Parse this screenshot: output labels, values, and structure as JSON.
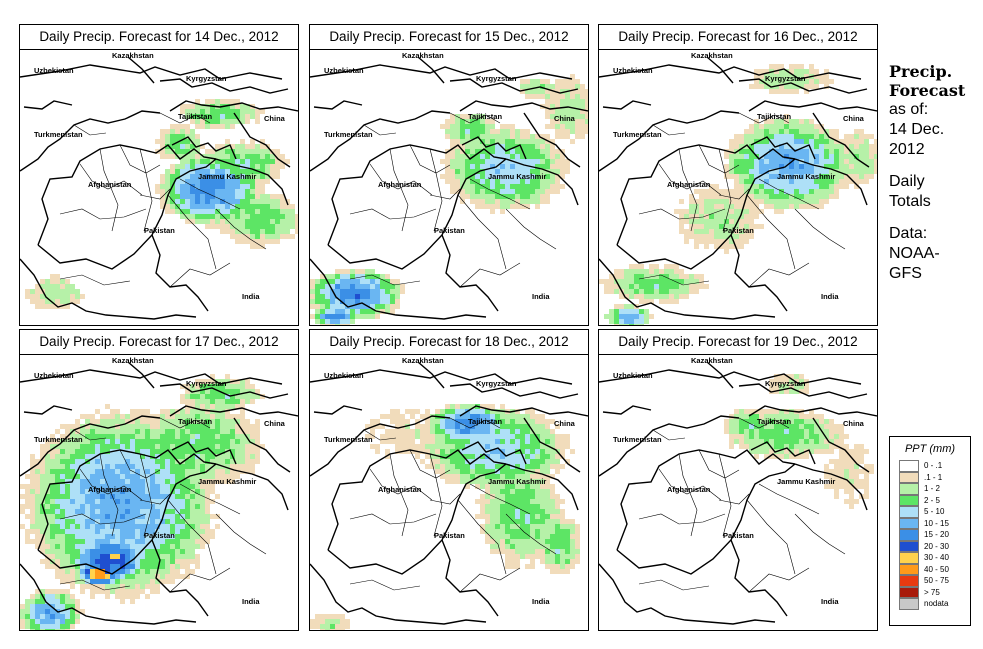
{
  "panels": [
    {
      "title": "Daily Precip. Forecast for  14 Dec., 2012",
      "pattern": 0
    },
    {
      "title": "Daily Precip. Forecast for  15 Dec., 2012",
      "pattern": 1
    },
    {
      "title": "Daily Precip. Forecast for  16 Dec., 2012",
      "pattern": 2
    },
    {
      "title": "Daily Precip. Forecast for  17 Dec., 2012",
      "pattern": 3
    },
    {
      "title": "Daily Precip. Forecast for  18 Dec., 2012",
      "pattern": 4
    },
    {
      "title": "Daily Precip. Forecast for  19 Dec., 2012",
      "pattern": 5
    }
  ],
  "map_labels": {
    "kazakhstan": "Kazakhstan",
    "uzbekistan": "Uzbekistan",
    "kyrgyzstan": "Kyrgyzstan",
    "tajikistan": "Tajikistan",
    "china": "China",
    "turkmenistan": "Turkmenistan",
    "afghanistan": "Afghanistan",
    "jammu_kashmir": "Jammu Kashmir",
    "pakistan": "Pakistan",
    "india": "India"
  },
  "side_info": {
    "title_line1": "Precip.",
    "title_line2": "Forecast",
    "asof_line1": "as of:",
    "asof_line2": "14 Dec.",
    "asof_line3": "2012",
    "totals_line1": "Daily",
    "totals_line2": "Totals",
    "data_line1": "Data:",
    "data_line2": "NOAA-",
    "data_line3": "GFS"
  },
  "legend": {
    "title": "PPT (mm)",
    "items": [
      {
        "label": "0 - .1",
        "color": "#ffffff"
      },
      {
        "label": ".1 - 1",
        "color": "#f1dcbb"
      },
      {
        "label": "1 - 2",
        "color": "#b6f1a8"
      },
      {
        "label": "2 - 5",
        "color": "#5de565"
      },
      {
        "label": "5 - 10",
        "color": "#aee0f7"
      },
      {
        "label": "10 - 15",
        "color": "#6ab6f2"
      },
      {
        "label": "15 - 20",
        "color": "#3b8fe6"
      },
      {
        "label": "20 - 30",
        "color": "#1f4fd0"
      },
      {
        "label": "30 - 40",
        "color": "#ffd24d"
      },
      {
        "label": "40 - 50",
        "color": "#ff9a1a"
      },
      {
        "label": "50 - 75",
        "color": "#e83a10"
      },
      {
        "label": "> 75",
        "color": "#a81a0a"
      },
      {
        "label": "nodata",
        "color": "#c8c8c8"
      }
    ]
  }
}
